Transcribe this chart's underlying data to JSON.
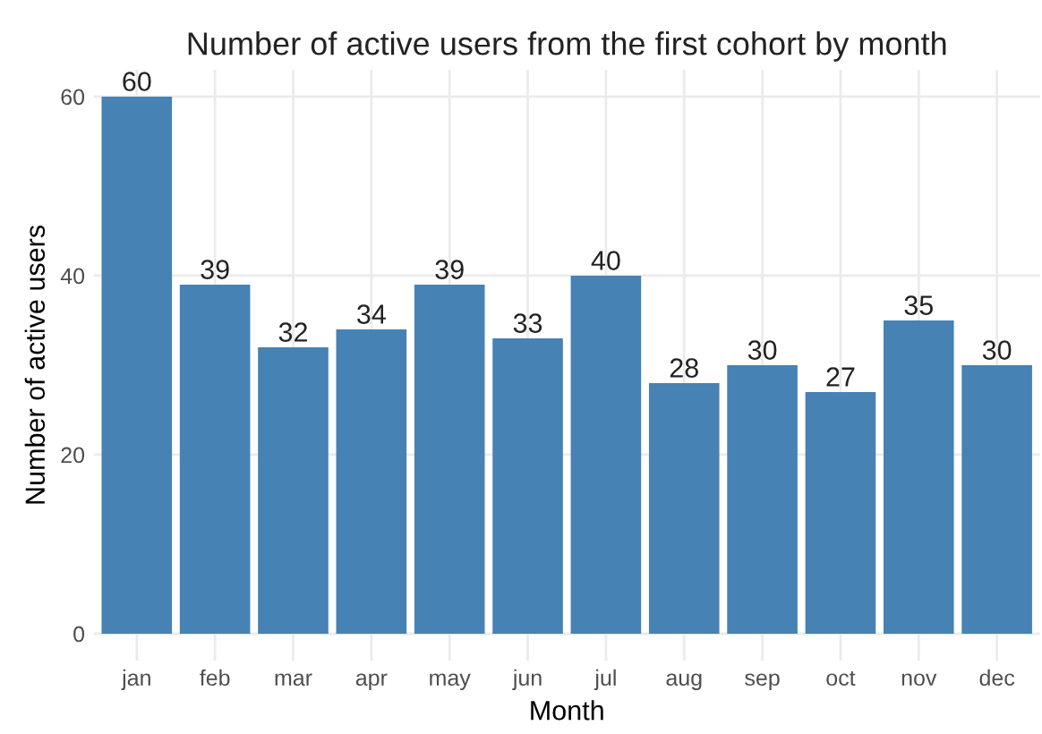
{
  "chart_data": {
    "type": "bar",
    "title": "Number of active users from the first cohort by month",
    "xlabel": "Month",
    "ylabel": "Number of active users",
    "categories": [
      "jan",
      "feb",
      "mar",
      "apr",
      "may",
      "jun",
      "jul",
      "aug",
      "sep",
      "oct",
      "nov",
      "dec"
    ],
    "values": [
      60,
      39,
      32,
      34,
      39,
      33,
      40,
      28,
      30,
      27,
      35,
      30
    ],
    "color": "#4682b4",
    "ylim": [
      -3,
      63
    ],
    "yticks": [
      0,
      20,
      40,
      60
    ],
    "grid": true,
    "data_labels": true
  }
}
